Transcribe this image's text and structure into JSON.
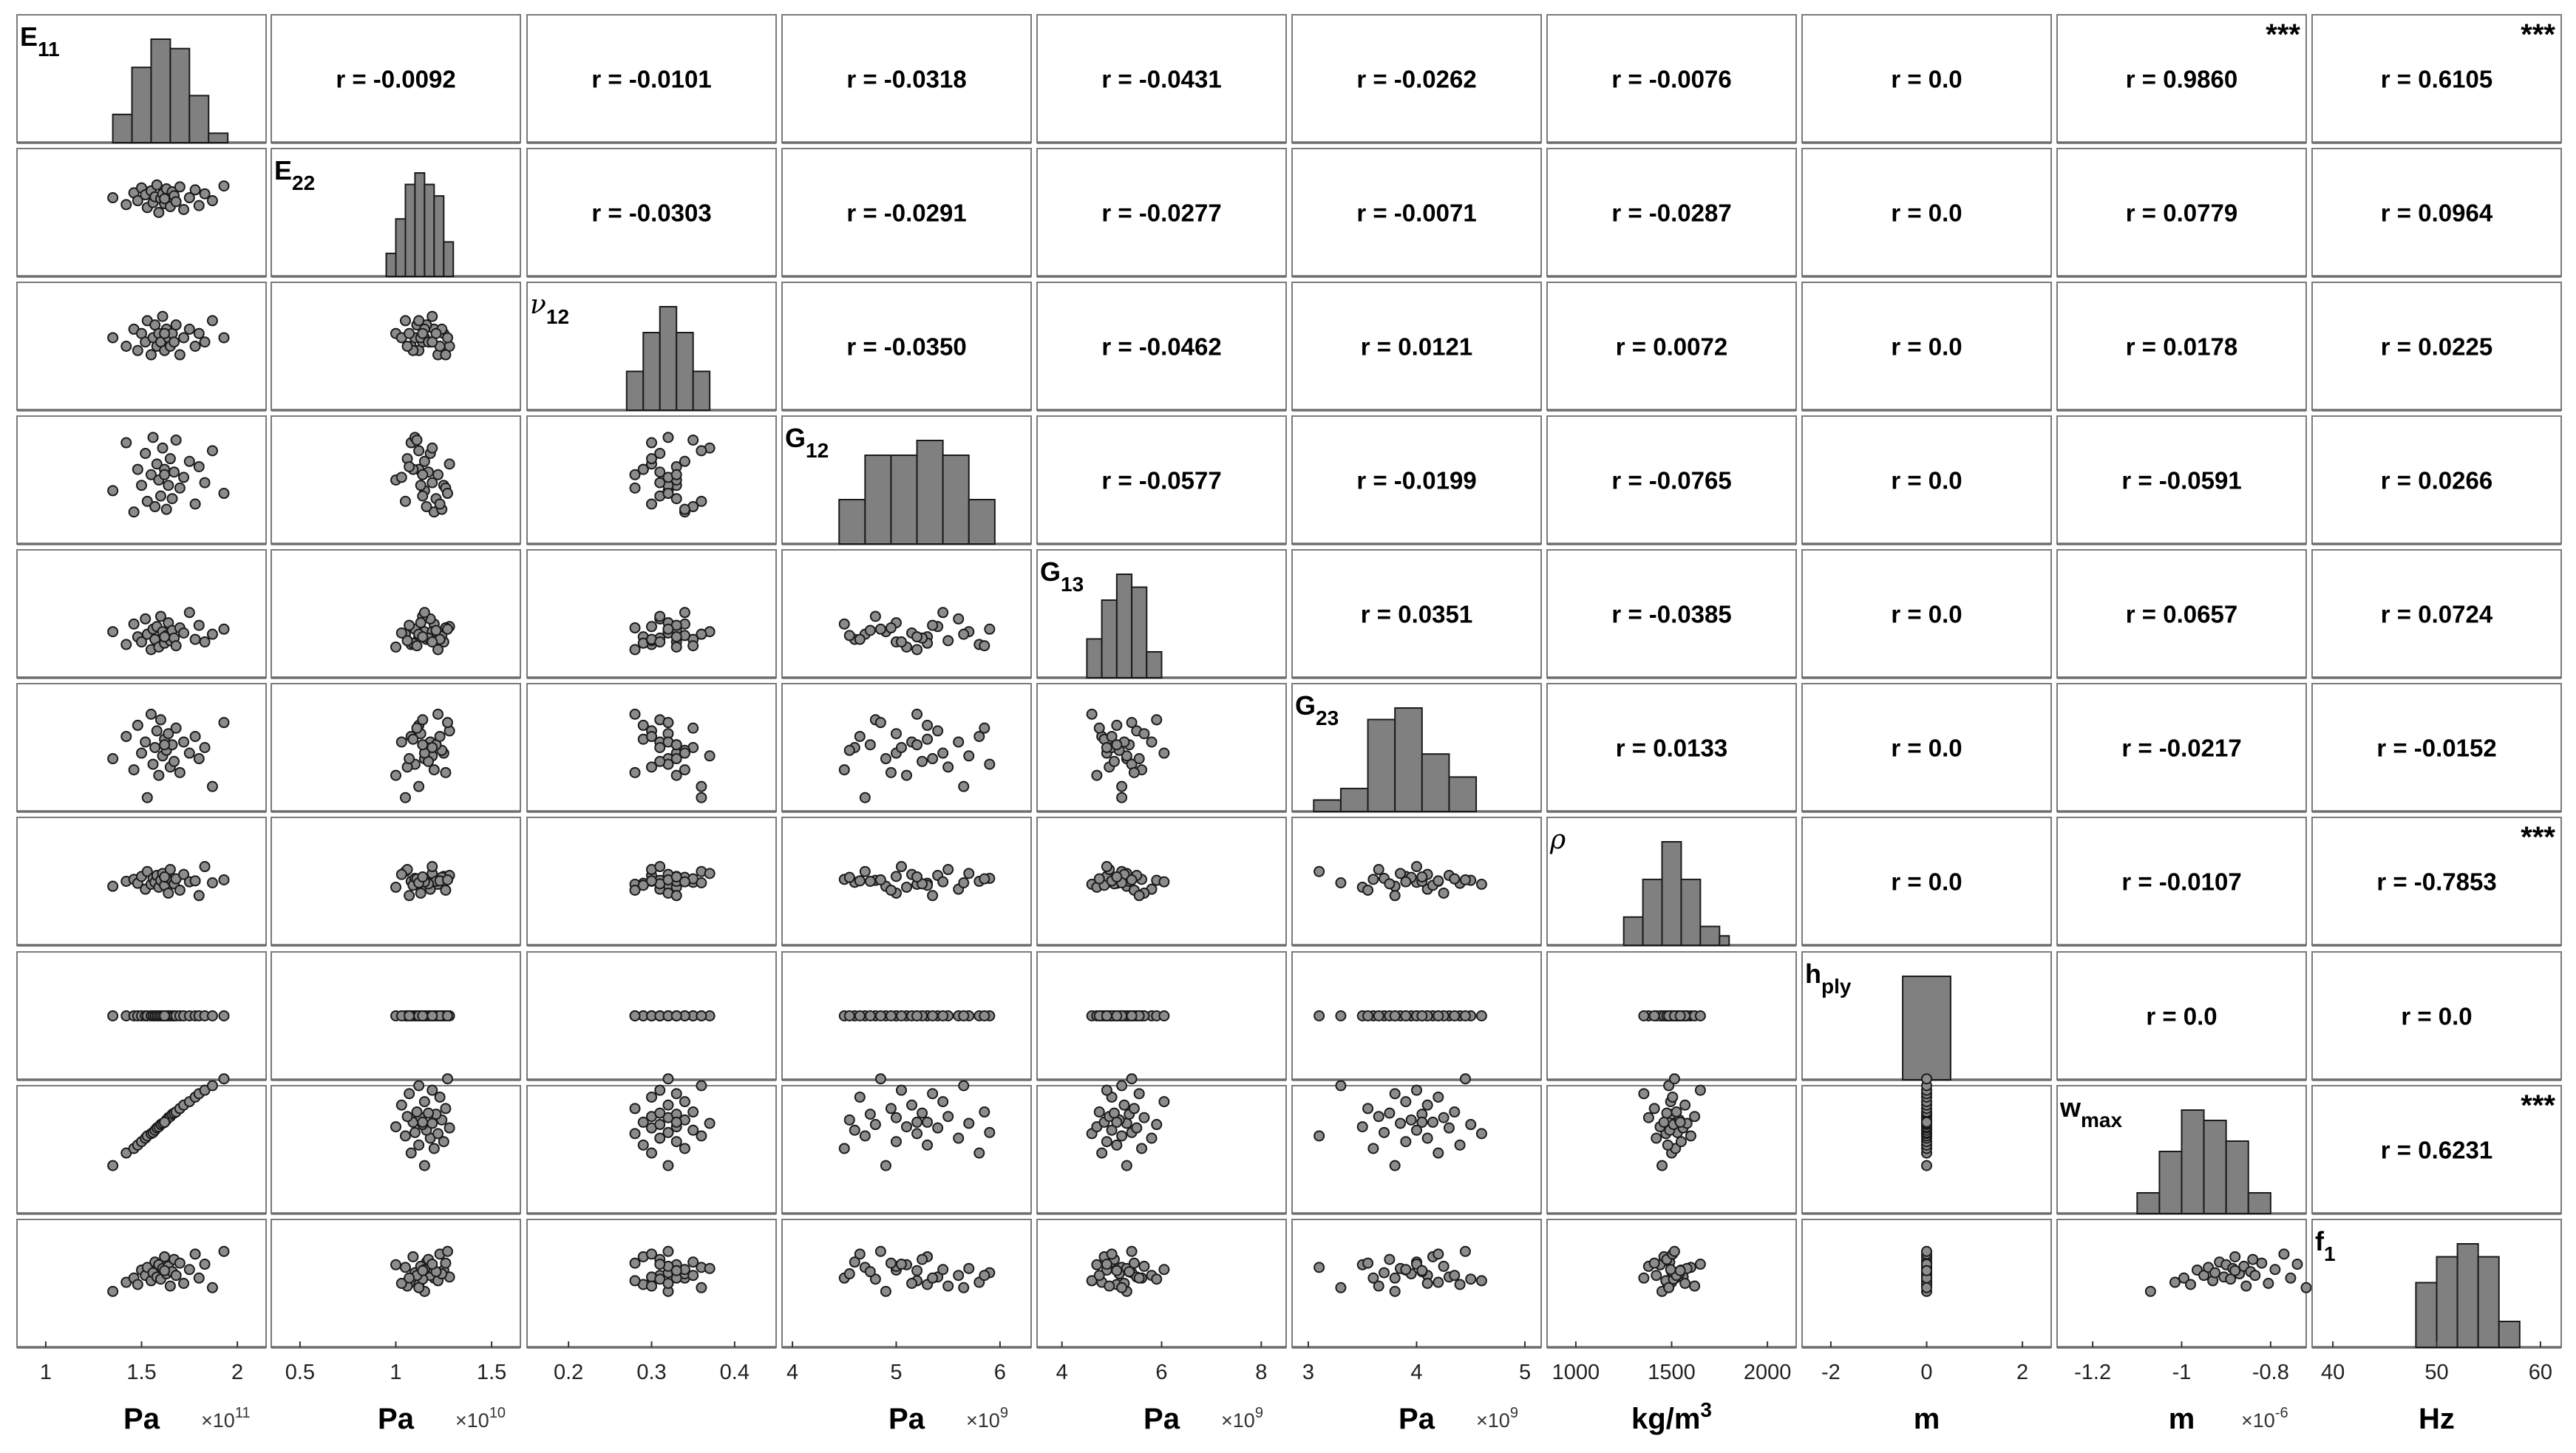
{
  "chart_data": {
    "type": "scatter-matrix",
    "variables": [
      {
        "name": "E",
        "sub": "11",
        "symbol_style": "bold"
      },
      {
        "name": "E",
        "sub": "22",
        "symbol_style": "bold"
      },
      {
        "name": "ν",
        "sub": "12",
        "symbol_style": "italic"
      },
      {
        "name": "G",
        "sub": "12",
        "symbol_style": "bold"
      },
      {
        "name": "G",
        "sub": "13",
        "symbol_style": "bold"
      },
      {
        "name": "G",
        "sub": "23",
        "symbol_style": "bold"
      },
      {
        "name": "ρ",
        "sub": "",
        "symbol_style": "italic"
      },
      {
        "name": "h",
        "sub": "ply",
        "symbol_style": "bold"
      },
      {
        "name": "w",
        "sub": "max",
        "symbol_style": "bold"
      },
      {
        "name": "f",
        "sub": "1",
        "symbol_style": "bold"
      }
    ],
    "x_axes": [
      {
        "min": 0.85,
        "max": 2.15,
        "ticks": [
          1,
          1.5,
          2
        ],
        "tick_labels": [
          "1",
          "1.5",
          "2"
        ],
        "unit": "Pa",
        "exponent_base": "×10",
        "exponent": "11"
      },
      {
        "min": 0.35,
        "max": 1.65,
        "ticks": [
          0.5,
          1,
          1.5
        ],
        "tick_labels": [
          "0.5",
          "1",
          "1.5"
        ],
        "unit": "Pa",
        "exponent_base": "×10",
        "exponent": "10"
      },
      {
        "min": 0.15,
        "max": 0.45,
        "ticks": [
          0.2,
          0.3,
          0.4
        ],
        "tick_labels": [
          "0.2",
          "0.3",
          "0.4"
        ],
        "unit": "",
        "exponent_base": "",
        "exponent": ""
      },
      {
        "min": 3.9,
        "max": 6.3,
        "ticks": [
          4,
          5,
          6
        ],
        "tick_labels": [
          "4",
          "5",
          "6"
        ],
        "unit": "Pa",
        "exponent_base": "×10",
        "exponent": "9"
      },
      {
        "min": 3.5,
        "max": 8.5,
        "ticks": [
          4,
          6,
          8
        ],
        "tick_labels": [
          "4",
          "6",
          "8"
        ],
        "unit": "Pa",
        "exponent_base": "×10",
        "exponent": "9"
      },
      {
        "min": 2.85,
        "max": 5.15,
        "ticks": [
          3,
          4,
          5
        ],
        "tick_labels": [
          "3",
          "4",
          "5"
        ],
        "unit": "Pa",
        "exponent_base": "×10",
        "exponent": "9"
      },
      {
        "min": 850,
        "max": 2150,
        "ticks": [
          1000,
          1500,
          2000
        ],
        "tick_labels": [
          "1000",
          "1500",
          "2000"
        ],
        "unit": "kg/m",
        "unit_sup": "3",
        "exponent_base": "",
        "exponent": ""
      },
      {
        "min": -2.6,
        "max": 2.6,
        "ticks": [
          -2,
          0,
          2
        ],
        "tick_labels": [
          "-2",
          "0",
          "2"
        ],
        "unit": "m",
        "exponent_base": "",
        "exponent": ""
      },
      {
        "min": -1.28,
        "max": -0.72,
        "ticks": [
          -1.2,
          -1,
          -0.8
        ],
        "tick_labels": [
          "-1.2",
          "-1",
          "-0.8"
        ],
        "unit": "m",
        "exponent_base": "×10",
        "exponent": "-6"
      },
      {
        "min": 38,
        "max": 62,
        "ticks": [
          40,
          50,
          60
        ],
        "tick_labels": [
          "40",
          "50",
          "60"
        ],
        "unit": "Hz",
        "exponent_base": "",
        "exponent": ""
      }
    ],
    "correlations": [
      [
        "",
        "r = -0.0092",
        "r = -0.0101",
        "r = -0.0318",
        "r = -0.0431",
        "r = -0.0262",
        "r = -0.0076",
        "r = 0.0",
        "r = 0.9860",
        "r = 0.6105"
      ],
      [
        "",
        "",
        "r = -0.0303",
        "r = -0.0291",
        "r = -0.0277",
        "r = -0.0071",
        "r = -0.0287",
        "r = 0.0",
        "r = 0.0779",
        "r = 0.0964"
      ],
      [
        "",
        "",
        "",
        "r = -0.0350",
        "r = -0.0462",
        "r = 0.0121",
        "r = 0.0072",
        "r = 0.0",
        "r = 0.0178",
        "r = 0.0225"
      ],
      [
        "",
        "",
        "",
        "",
        "r = -0.0577",
        "r = -0.0199",
        "r = -0.0765",
        "r = 0.0",
        "r = -0.0591",
        "r = 0.0266"
      ],
      [
        "",
        "",
        "",
        "",
        "",
        "r = 0.0351",
        "r = -0.0385",
        "r = 0.0",
        "r = 0.0657",
        "r = 0.0724"
      ],
      [
        "",
        "",
        "",
        "",
        "",
        "",
        "r = 0.0133",
        "r = 0.0",
        "r = -0.0217",
        "r = -0.0152"
      ],
      [
        "",
        "",
        "",
        "",
        "",
        "",
        "",
        "r = 0.0",
        "r = -0.0107",
        "r = -0.7853"
      ],
      [
        "",
        "",
        "",
        "",
        "",
        "",
        "",
        "",
        "r = 0.0",
        "r = 0.0"
      ],
      [
        "",
        "",
        "",
        "",
        "",
        "",
        "",
        "",
        "",
        "r = 0.6231"
      ],
      [
        "",
        "",
        "",
        "",
        "",
        "",
        "",
        "",
        "",
        ""
      ]
    ],
    "significance": [
      [
        "",
        "",
        "",
        "",
        "",
        "",
        "",
        "",
        "***",
        "***"
      ],
      [
        "",
        "",
        "",
        "",
        "",
        "",
        "",
        "",
        "",
        ""
      ],
      [
        "",
        "",
        "",
        "",
        "",
        "",
        "",
        "",
        "",
        ""
      ],
      [
        "",
        "",
        "",
        "",
        "",
        "",
        "",
        "",
        "",
        ""
      ],
      [
        "",
        "",
        "",
        "",
        "",
        "",
        "",
        "",
        "",
        ""
      ],
      [
        "",
        "",
        "",
        "",
        "",
        "",
        "",
        "",
        "",
        ""
      ],
      [
        "",
        "",
        "",
        "",
        "",
        "",
        "",
        "",
        "",
        "***"
      ],
      [
        "",
        "",
        "",
        "",
        "",
        "",
        "",
        "",
        "",
        ""
      ],
      [
        "",
        "",
        "",
        "",
        "",
        "",
        "",
        "",
        "",
        "***"
      ],
      [
        "",
        "",
        "",
        "",
        "",
        "",
        "",
        "",
        "",
        ""
      ]
    ],
    "histograms": [
      {
        "edges": [
          1.35,
          1.45,
          1.55,
          1.65,
          1.75,
          1.85,
          1.95
        ],
        "counts": [
          3,
          8,
          11,
          10,
          5,
          1
        ]
      },
      {
        "edges": [
          0.95,
          1.0,
          1.05,
          1.1,
          1.15,
          1.2,
          1.25,
          1.3
        ],
        "counts": [
          2,
          5,
          8,
          9,
          8,
          7,
          3
        ]
      },
      {
        "edges": [
          0.27,
          0.29,
          0.31,
          0.33,
          0.35,
          0.37
        ],
        "counts": [
          3,
          6,
          8,
          6,
          3
        ]
      },
      {
        "edges": [
          4.45,
          4.7,
          4.95,
          5.2,
          5.45,
          5.7,
          5.95
        ],
        "counts": [
          3,
          6,
          6,
          7,
          6,
          3
        ]
      },
      {
        "edges": [
          4.5,
          4.8,
          5.1,
          5.4,
          5.7,
          6.0
        ],
        "counts": [
          3,
          6,
          8,
          7,
          2
        ]
      },
      {
        "edges": [
          3.05,
          3.3,
          3.55,
          3.8,
          4.05,
          4.3,
          4.55
        ],
        "counts": [
          1,
          2,
          8,
          9,
          5,
          3
        ]
      },
      {
        "edges": [
          1250,
          1350,
          1450,
          1550,
          1650,
          1750,
          1800
        ],
        "counts": [
          3,
          7,
          11,
          7,
          2,
          1
        ]
      },
      {
        "edges": [
          -0.5,
          0.5
        ],
        "counts": [
          1
        ]
      },
      {
        "edges": [
          -1.1,
          -1.05,
          -1.0,
          -0.95,
          -0.9,
          -0.85,
          -0.8
        ],
        "counts": [
          2,
          6,
          10,
          9,
          7,
          2
        ]
      },
      {
        "edges": [
          48,
          50,
          52,
          54,
          56,
          58
        ],
        "counts": [
          5,
          7,
          8,
          7,
          2
        ]
      }
    ],
    "samples": [
      [
        1.35,
        1.42,
        1.46,
        1.48,
        1.5,
        1.52,
        1.53,
        1.55,
        1.56,
        1.57,
        1.58,
        1.59,
        1.6,
        1.61,
        1.62,
        1.63,
        1.64,
        1.65,
        1.66,
        1.67,
        1.68,
        1.7,
        1.72,
        1.75,
        1.78,
        1.8,
        1.83,
        1.87,
        1.93,
        1.62
      ],
      [
        1.15,
        1.08,
        1.2,
        1.12,
        1.25,
        1.18,
        1.05,
        1.22,
        1.1,
        1.16,
        1.28,
        1.0,
        1.14,
        1.19,
        1.09,
        1.24,
        1.13,
        1.06,
        1.21,
        1.17,
        1.11,
        1.26,
        1.03,
        1.15,
        1.23,
        1.07,
        1.19,
        1.12,
        1.27,
        1.14
      ],
      [
        0.32,
        0.3,
        0.34,
        0.29,
        0.33,
        0.31,
        0.36,
        0.28,
        0.32,
        0.35,
        0.3,
        0.33,
        0.31,
        0.37,
        0.29,
        0.34,
        0.32,
        0.3,
        0.33,
        0.31,
        0.35,
        0.28,
        0.32,
        0.34,
        0.3,
        0.33,
        0.31,
        0.36,
        0.32,
        0.33
      ],
      [
        4.9,
        5.8,
        4.5,
        5.3,
        5.0,
        5.6,
        4.7,
        5.2,
        5.9,
        4.6,
        5.4,
        5.1,
        4.8,
        5.7,
        5.3,
        4.55,
        5.0,
        5.5,
        4.75,
        5.25,
        5.85,
        4.95,
        5.15,
        5.45,
        4.65,
        5.35,
        5.05,
        5.65,
        4.85,
        5.2
      ],
      [
        5.3,
        4.8,
        5.6,
        5.1,
        4.9,
        5.8,
        5.2,
        4.6,
        5.4,
        5.0,
        5.5,
        4.7,
        5.9,
        5.3,
        4.85,
        5.15,
        5.65,
        4.95,
        5.35,
        5.05,
        4.75,
        5.45,
        5.25,
        6.05,
        5.0,
        5.55,
        4.9,
        5.2,
        5.4,
        5.1
      ],
      [
        3.8,
        4.2,
        3.6,
        4.4,
        3.9,
        4.1,
        3.1,
        4.6,
        3.7,
        4.0,
        4.3,
        3.5,
        4.5,
        3.85,
        4.15,
        3.95,
        4.25,
        3.65,
        4.05,
        3.75,
        4.35,
        3.55,
        4.1,
        3.9,
        4.2,
        3.8,
        4.0,
        3.3,
        4.45,
        4.05
      ],
      [
        1450,
        1500,
        1520,
        1480,
        1550,
        1420,
        1600,
        1470,
        1530,
        1490,
        1560,
        1440,
        1510,
        1580,
        1460,
        1540,
        1380,
        1620,
        1500,
        1475,
        1525,
        1410,
        1570,
        1495,
        1505,
        1355,
        1650,
        1485,
        1515,
        1545
      ],
      [
        0,
        0,
        0,
        0,
        0,
        0,
        0,
        0,
        0,
        0,
        0,
        0,
        0,
        0,
        0,
        0,
        0,
        0,
        0,
        0,
        0,
        0,
        0,
        0,
        0,
        0,
        0,
        0,
        0,
        0
      ],
      [
        -1.07,
        -1.015,
        -0.995,
        -0.98,
        -0.965,
        -0.95,
        -0.94,
        -0.93,
        -0.925,
        -0.915,
        -0.905,
        -0.9,
        -0.89,
        -0.885,
        -0.88,
        -0.87,
        -0.86,
        -0.855,
        -0.845,
        -0.84,
        -0.835,
        -0.82,
        -0.805,
        -0.79,
        -0.77,
        -0.755,
        -0.74,
        -0.72,
        -0.69,
        -0.88
      ],
      [
        48.5,
        50.2,
        51.0,
        49.8,
        52.5,
        51.5,
        53.0,
        50.5,
        52.0,
        54.0,
        51.2,
        53.5,
        50.8,
        52.8,
        55.0,
        51.8,
        53.2,
        49.5,
        52.2,
        54.5,
        51.5,
        53.8,
        50.0,
        52.6,
        55.5,
        51.0,
        53.6,
        49.2,
        56.0,
        52.4
      ]
    ]
  }
}
